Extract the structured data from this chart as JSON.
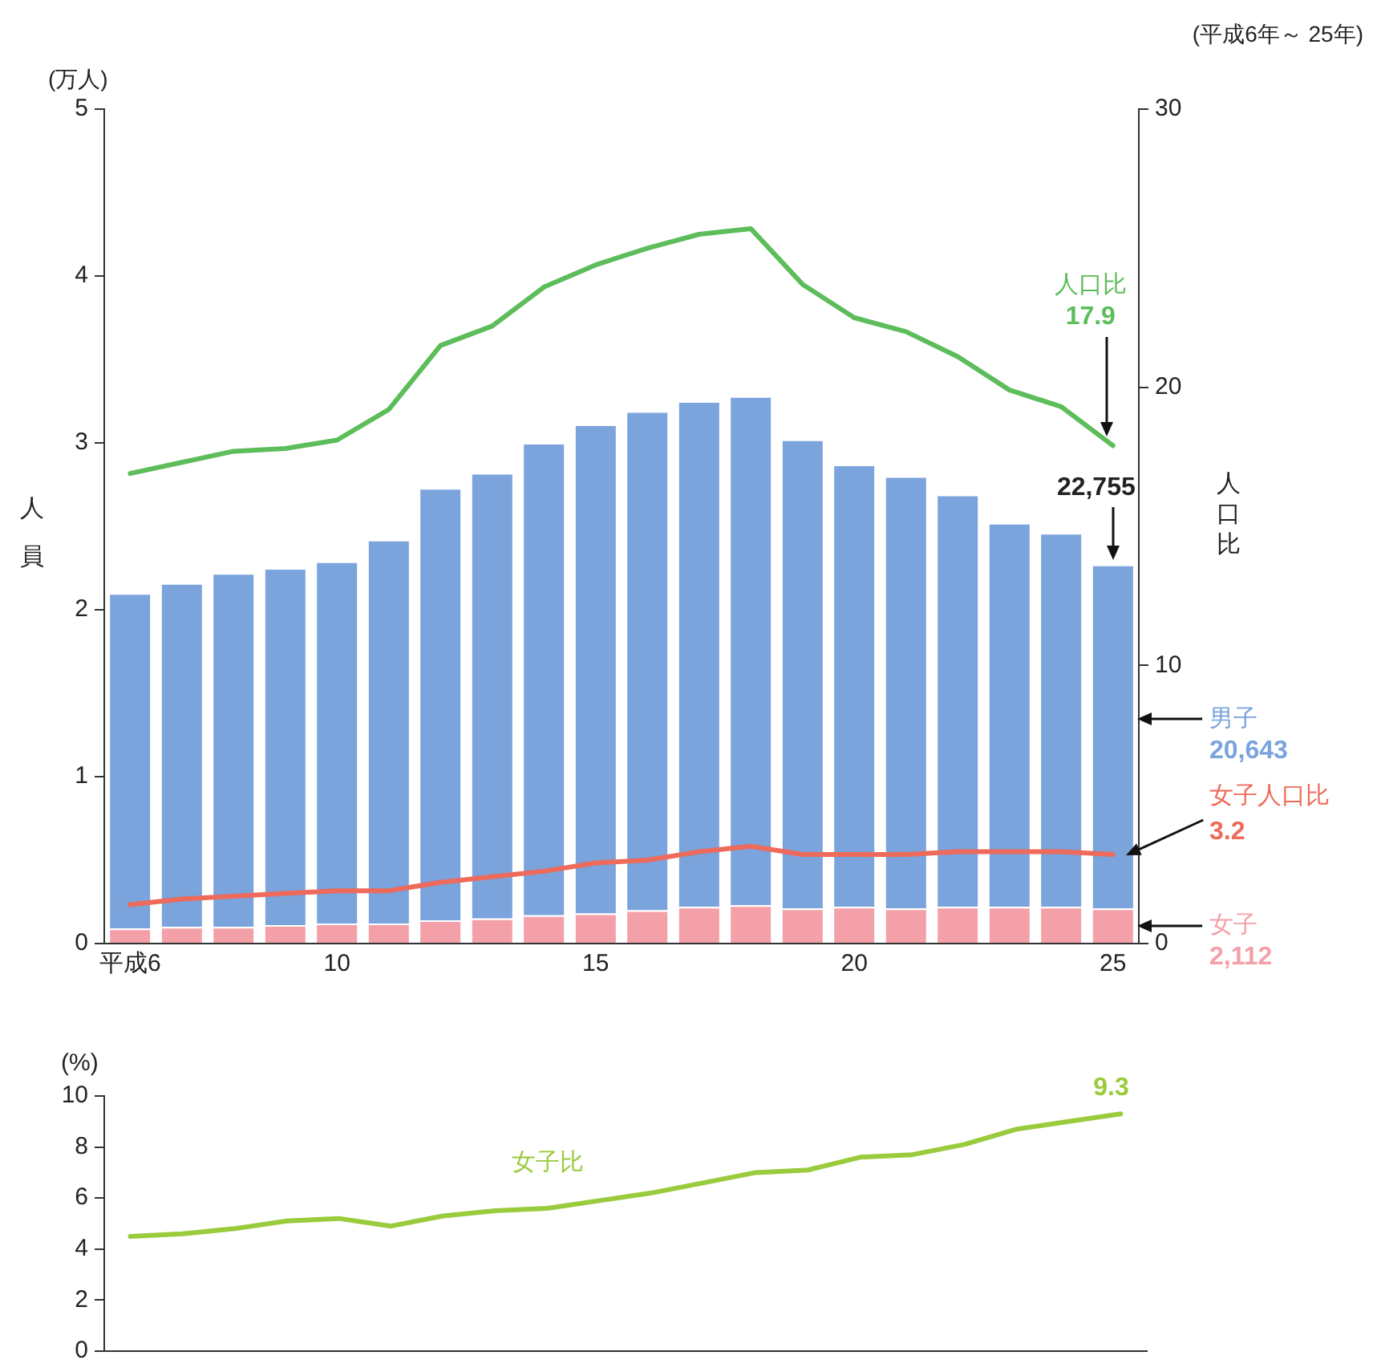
{
  "chart_data": [
    {
      "type": "bar",
      "categories": [
        "平成6",
        null,
        null,
        null,
        "10",
        null,
        null,
        null,
        null,
        "15",
        null,
        null,
        null,
        null,
        "20",
        null,
        null,
        null,
        null,
        "25"
      ],
      "series": [
        {
          "name": "女子",
          "color": "#f4a0a8",
          "values": [
            0.09,
            0.1,
            0.1,
            0.11,
            0.12,
            0.12,
            0.14,
            0.15,
            0.17,
            0.18,
            0.2,
            0.22,
            0.23,
            0.21,
            0.22,
            0.21,
            0.22,
            0.22,
            0.22,
            0.21
          ]
        },
        {
          "name": "男子",
          "color": "#7ba3dc",
          "values": [
            2.01,
            2.06,
            2.12,
            2.14,
            2.17,
            2.3,
            2.59,
            2.67,
            2.83,
            2.93,
            2.99,
            3.03,
            3.05,
            2.81,
            2.65,
            2.59,
            2.47,
            2.3,
            2.24,
            2.06
          ]
        },
        {
          "name": "人口比",
          "type": "line",
          "axis": "y2",
          "color": "#5cbd5a",
          "values": [
            16.9,
            17.3,
            17.7,
            17.8,
            18.1,
            19.2,
            21.5,
            22.2,
            23.6,
            24.4,
            25.0,
            25.5,
            25.7,
            23.7,
            22.5,
            22.0,
            21.1,
            19.9,
            19.3,
            17.9
          ]
        },
        {
          "name": "女子人口比",
          "type": "line",
          "axis": "y2",
          "color": "#ee6a5a",
          "values": [
            1.4,
            1.6,
            1.7,
            1.8,
            1.9,
            1.9,
            2.2,
            2.4,
            2.6,
            2.9,
            3.0,
            3.3,
            3.5,
            3.2,
            3.2,
            3.2,
            3.3,
            3.3,
            3.3,
            3.2
          ]
        }
      ],
      "stacked": true,
      "marker": "none",
      "ylim": [
        0,
        5
      ],
      "yticks": [
        0,
        1,
        2,
        3,
        4,
        5
      ],
      "y2lim": [
        0,
        30
      ],
      "y2ticks": [
        0,
        10,
        20,
        30
      ],
      "ylabel": "人員",
      "y2label": "人口比",
      "annotations": [
        "(万人)",
        "(平成6年～ 25年)",
        "2,112",
        "20,643",
        "17.9",
        "3.2",
        "22,755"
      ]
    },
    {
      "type": "line",
      "categories": [
        null,
        null,
        null,
        null,
        null,
        null,
        null,
        null,
        null,
        null,
        null,
        null,
        null,
        null,
        null,
        null,
        null,
        null,
        null,
        null
      ],
      "series": [
        {
          "name": "女子比",
          "color": "#9acb3c",
          "values": [
            4.5,
            4.6,
            4.8,
            5.1,
            5.2,
            4.9,
            5.3,
            5.5,
            5.6,
            5.9,
            6.2,
            6.6,
            7.0,
            7.1,
            7.6,
            7.7,
            8.1,
            8.7,
            9.0,
            9.3
          ],
          "value_labels": [
            null,
            null,
            null,
            null,
            null,
            null,
            null,
            null,
            null,
            null,
            null,
            null,
            null,
            null,
            null,
            null,
            null,
            null,
            null,
            "9.3"
          ]
        }
      ],
      "marker": "none",
      "ylim": [
        0,
        10
      ],
      "yticks": [
        0,
        2,
        4,
        6,
        8,
        10
      ],
      "ylabel": "(%)",
      "tick_labels": "y"
    }
  ]
}
